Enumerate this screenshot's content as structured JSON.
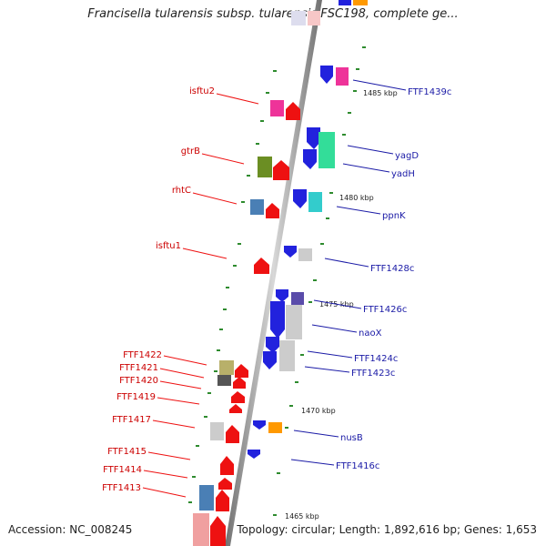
{
  "title": "Francisella tularensis subsp. tularensis FSC198, complete ge...",
  "footer": {
    "accession": "Accession: NC_008245",
    "topology": "Topology: circular; Length: 1,892,616 bp; Genes: 1,653"
  },
  "colors": {
    "backbone": "#8a8a8a",
    "left_label": "#cc0000",
    "right_label": "#1a1aa6",
    "tick": "#2e8b2e"
  },
  "scale_labels": [
    "1485 kbp",
    "1480 kbp",
    "1475 kbp",
    "1470 kbp",
    "1465 kbp"
  ],
  "left_labels": [
    "isftu2",
    "gtrB",
    "rhtC",
    "isftu1",
    "FTF1422",
    "FTF1421",
    "FTF1420",
    "FTF1419",
    "FTF1417",
    "FTF1415",
    "FTF1414",
    "FTF1413"
  ],
  "right_labels": [
    "FTF1439c",
    "yagD",
    "yadH",
    "ppnK",
    "FTF1428c",
    "FTF1426c",
    "naoX",
    "FTF1424c",
    "FTF1423c",
    "nusB",
    "FTF1416c"
  ]
}
